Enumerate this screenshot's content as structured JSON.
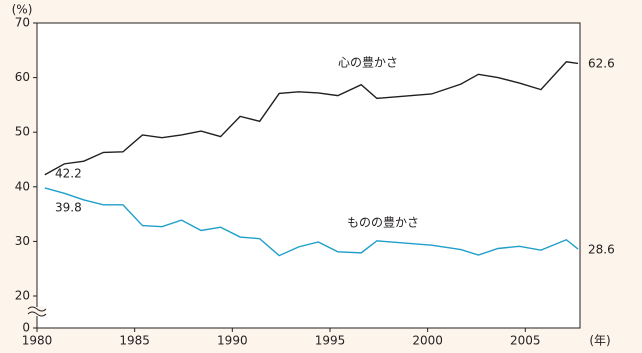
{
  "chart_data": {
    "type": "line",
    "y_unit": "(%)",
    "x_unit": "(年)",
    "xlim": [
      1980,
      2007.8
    ],
    "xticks": [
      1980,
      1985,
      1990,
      1995,
      2000,
      2005
    ],
    "ylim": [
      0,
      70
    ],
    "yticks": [
      0,
      20,
      30,
      40,
      50,
      60,
      70
    ],
    "axis_break": [
      0,
      20
    ],
    "x": [
      1980.4,
      1981.4,
      1982.4,
      1983.4,
      1984.4,
      1985.4,
      1986.4,
      1987.4,
      1988.4,
      1989.4,
      1990.4,
      1991.4,
      1992.4,
      1993.4,
      1994.4,
      1995.4,
      1996.6,
      1997.4,
      2000.2,
      2001.7,
      2002.6,
      2003.6,
      2004.7,
      2005.8,
      2007.1,
      2007.7
    ],
    "series": [
      {
        "name": "心の豊かさ",
        "color": "#231f20",
        "values": [
          42.2,
          44.2,
          44.7,
          46.3,
          46.4,
          49.5,
          49.0,
          49.5,
          50.2,
          49.2,
          52.9,
          52.0,
          57.1,
          57.4,
          57.2,
          56.7,
          58.7,
          56.2,
          57.0,
          58.8,
          60.6,
          60.0,
          59.0,
          57.8,
          62.9,
          62.6
        ]
      },
      {
        "name": "ものの豊かさ",
        "color": "#1f9fca",
        "values": [
          39.8,
          38.8,
          37.6,
          36.7,
          36.7,
          32.9,
          32.7,
          33.9,
          32.0,
          32.6,
          30.8,
          30.5,
          27.4,
          29.0,
          29.9,
          28.1,
          27.9,
          30.1,
          29.3,
          28.5,
          27.5,
          28.7,
          29.1,
          28.4,
          30.3,
          28.6
        ]
      }
    ]
  }
}
